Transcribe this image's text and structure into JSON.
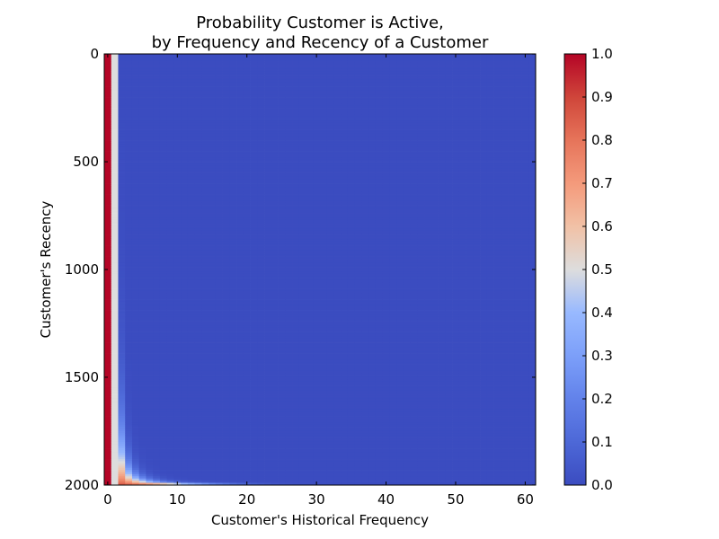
{
  "chart_data": {
    "type": "heatmap",
    "title_lines": [
      "Probability Customer is Active,",
      "by Frequency and Recency of a Customer"
    ],
    "xlabel": "Customer's Historical Frequency",
    "ylabel": "Customer's Recency",
    "xlim": [
      -0.5,
      61.5
    ],
    "ylim": [
      2000.5,
      -0.5
    ],
    "x_ticks": [
      0,
      10,
      20,
      30,
      40,
      50,
      60
    ],
    "x_tick_labels": [
      "0",
      "10",
      "20",
      "30",
      "40",
      "50",
      "60"
    ],
    "y_ticks": [
      0,
      500,
      1000,
      1500,
      2000
    ],
    "y_tick_labels": [
      "0",
      "500",
      "1000",
      "1500",
      "2000"
    ],
    "colorbar": {
      "min": 0.0,
      "max": 1.0,
      "ticks": [
        0.0,
        0.1,
        0.2,
        0.3,
        0.4,
        0.5,
        0.6,
        0.7,
        0.8,
        0.9,
        1.0
      ],
      "tick_labels": [
        "0.0",
        "0.1",
        "0.2",
        "0.3",
        "0.4",
        "0.5",
        "0.6",
        "0.7",
        "0.8",
        "0.9",
        "1.0"
      ]
    },
    "colormap": "coolwarm",
    "frequency_range": [
      0,
      61
    ],
    "recency_range": [
      0,
      2000
    ],
    "grid": false
  }
}
